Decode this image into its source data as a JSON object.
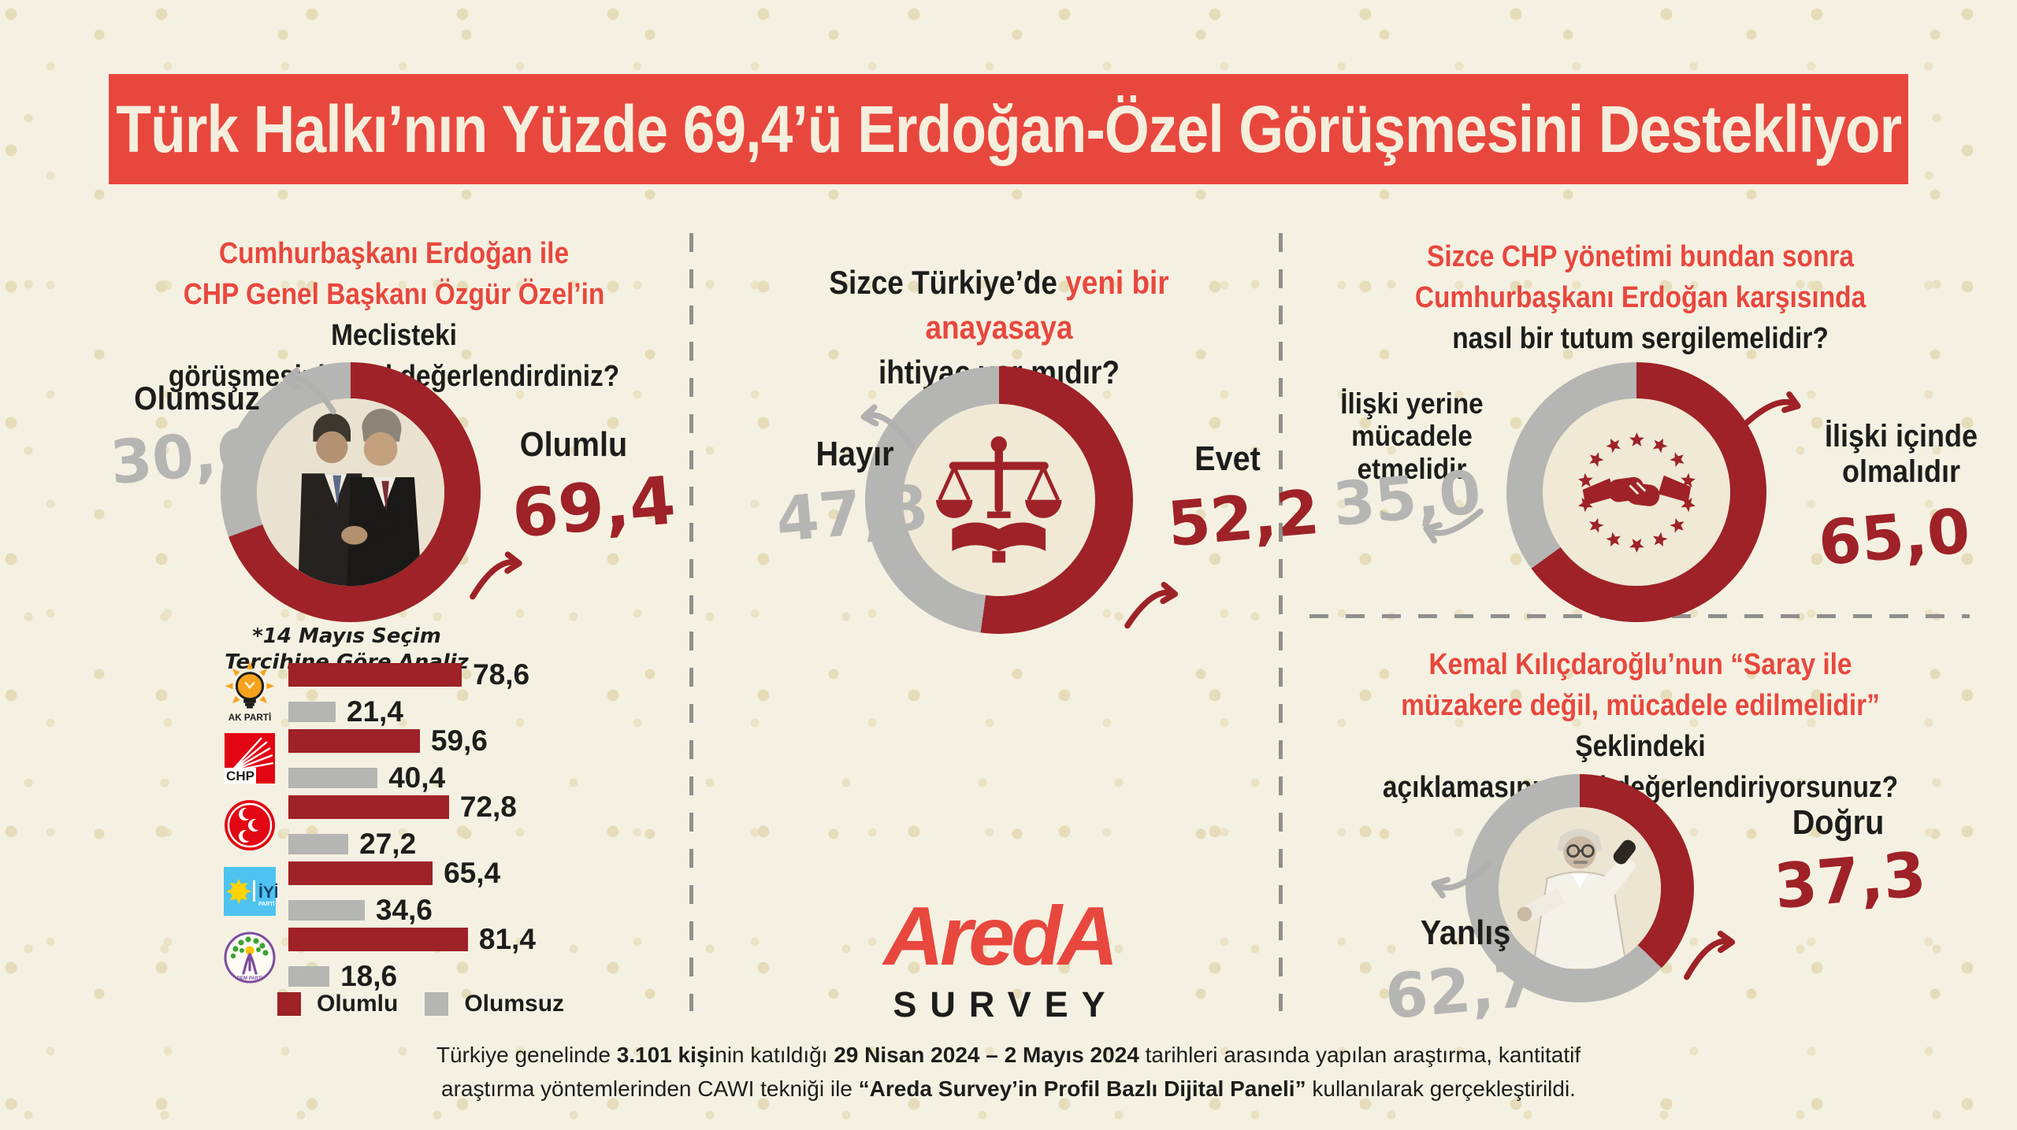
{
  "title": "Türk Halkı’nın Yüzde 69,4’ü Erdoğan-Özel Görüşmesini Destekliyor",
  "meeting": {
    "q_line1": "Cumhurbaşkanı Erdoğan ile",
    "q_line2_red": "CHP Genel Başkanı Özgür Özel’in",
    "q_line2_black": " Meclisteki",
    "q_line3": "görüşmesini nasıl değerlendirdiniz?",
    "negative_label": "Olumsuz",
    "negative_value": "30,6",
    "positive_label": "Olumlu",
    "positive_value": "69,4",
    "positive_pct": 69.4
  },
  "party_analysis": {
    "note_line1": "*14 Mayıs Seçim",
    "note_line2": "Tercihine Göre Analiz",
    "rows": [
      {
        "logo": "akp",
        "party": "AK PARTİ",
        "positive": "78,6",
        "negative": "21,4",
        "positive_num": 78.6,
        "negative_num": 21.4
      },
      {
        "logo": "chp",
        "party": "CHP",
        "positive": "59,6",
        "negative": "40,4",
        "positive_num": 59.6,
        "negative_num": 40.4
      },
      {
        "logo": "mhp",
        "party": "MHP",
        "positive": "72,8",
        "negative": "27,2",
        "positive_num": 72.8,
        "negative_num": 27.2
      },
      {
        "logo": "iyi",
        "party": "İYİ PARTİ",
        "positive": "65,4",
        "negative": "34,6",
        "positive_num": 65.4,
        "negative_num": 34.6
      },
      {
        "logo": "dem",
        "party": "DEM PARTİ",
        "positive": "81,4",
        "negative": "18,6",
        "positive_num": 81.4,
        "negative_num": 18.6
      }
    ],
    "legend_positive": "Olumlu",
    "legend_negative": "Olumsuz"
  },
  "constitution": {
    "q_line1_black": "Sizce Türkiye’de ",
    "q_line1_red": "yeni bir anayasaya",
    "q_line2": "ihtiyaç var mıdır?",
    "no_label": "Hayır",
    "no_value": "47,8",
    "yes_label": "Evet",
    "yes_value": "52,2",
    "yes_pct": 52.2
  },
  "chp_stance": {
    "q_line1": "Sizce CHP yönetimi bundan sonra",
    "q_line2": "Cumhurbaşkanı Erdoğan karşısında",
    "q_line3": "nasıl bir tutum sergilemelidir?",
    "left_label_line1": "İlişki yerine",
    "left_label_line2": "mücadele etmelidir",
    "left_value": "35,0",
    "right_label_line1": "İlişki içinde",
    "right_label_line2": "olmalıdır",
    "right_value": "65,0",
    "right_pct": 65.0
  },
  "kilicdaroglu": {
    "q_line1": "Kemal Kılıçdaroğlu’nun “Saray ile",
    "q_line2_red": "müzakere değil, mücadele edilmelidir”",
    "q_line2_black": " Şeklindeki",
    "q_line3": "açıklamasını nasıl değerlendiriyorsunuz?",
    "right_label": "Doğru",
    "right_value": "37,3",
    "left_label": "Yanlış",
    "left_value": "62,7",
    "right_pct": 37.3
  },
  "logos": {
    "akp": "AK PARTİ",
    "chp": "CHP",
    "iyi": "İYİ",
    "iyi_sub": "PARTİ",
    "dem": "DEM PARTİ"
  },
  "brand": {
    "wordmark": "AredA",
    "sub": "SURVEY"
  },
  "footer": {
    "l1a": "Türkiye genelinde ",
    "l1b": "3.101 kişi",
    "l1c": "nin katıldığı ",
    "l1d": "29 Nisan 2024 – 2 Mayıs 2024",
    "l1e": " tarihleri arasında yapılan araştırma, kantitatif",
    "l2a": "araştırma yöntemlerinden CAWI tekniği ile ",
    "l2b": "“Areda Survey’in Profil Bazlı Dijital Paneli”",
    "l2c": " kullanılarak gerçekleştirildi."
  },
  "colors": {
    "banner_red": "#e8473e",
    "dark_red": "#9e2227",
    "gray": "#b5b5b3",
    "background": "#f5f1e2",
    "text_black": "#1d1d1b"
  },
  "chart_data": [
    {
      "type": "pie",
      "title": "Cumhurbaşkanı Erdoğan ile CHP Genel Başkanı Özgür Özel’in Meclisteki görüşmesini nasıl değerlendirdiniz?",
      "labels": [
        "Olumlu",
        "Olumsuz"
      ],
      "values": [
        69.4,
        30.6
      ],
      "colors": [
        "#9e2227",
        "#b5b5b3"
      ],
      "legend_position": "sides"
    },
    {
      "type": "bar",
      "title": "*14 Mayıs Seçim Tercihine Göre Analiz",
      "categories": [
        "AK PARTİ",
        "CHP",
        "MHP",
        "İYİ PARTİ",
        "DEM PARTİ"
      ],
      "series": [
        {
          "name": "Olumlu",
          "values": [
            78.6,
            59.6,
            72.8,
            65.4,
            81.4
          ],
          "color": "#9e2227"
        },
        {
          "name": "Olumsuz",
          "values": [
            21.4,
            40.4,
            27.2,
            34.6,
            18.6
          ],
          "color": "#b5b5b3"
        }
      ],
      "xlim": [
        0,
        100
      ],
      "orientation": "horizontal",
      "grid": false
    },
    {
      "type": "pie",
      "title": "Sizce Türkiye’de yeni bir anayasaya ihtiyaç var mıdır?",
      "labels": [
        "Evet",
        "Hayır"
      ],
      "values": [
        52.2,
        47.8
      ],
      "colors": [
        "#9e2227",
        "#b5b5b3"
      ],
      "legend_position": "sides"
    },
    {
      "type": "pie",
      "title": "Sizce CHP yönetimi bundan sonra Cumhurbaşkanı Erdoğan karşısında nasıl bir tutum sergilemelidir?",
      "labels": [
        "İlişki içinde olmalıdır",
        "İlişki yerine mücadele etmelidir"
      ],
      "values": [
        65.0,
        35.0
      ],
      "colors": [
        "#9e2227",
        "#b5b5b3"
      ],
      "legend_position": "sides"
    },
    {
      "type": "pie",
      "title": "Kemal Kılıçdaroğlu’nun “Saray ile müzakere değil, mücadele edilmelidir” Şeklindeki açıklamasını nasıl değerlendiriyorsunuz?",
      "labels": [
        "Yanlış",
        "Doğru"
      ],
      "values": [
        62.7,
        37.3
      ],
      "colors": [
        "#b5b5b3",
        "#9e2227"
      ],
      "legend_position": "sides"
    }
  ]
}
